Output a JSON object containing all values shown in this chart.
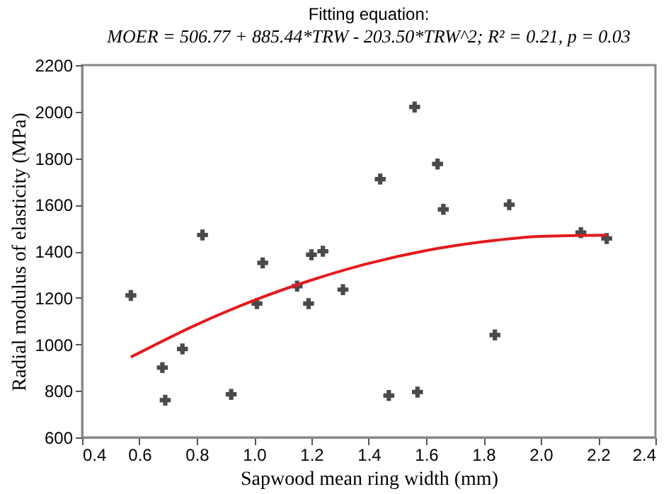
{
  "chart_data": {
    "type": "scatter",
    "title": "Fitting equation:",
    "subtitle": "MOER = 506.77 + 885.44*TRW - 203.50*TRW^2; R² = 0.21, p = 0.03",
    "xlabel": "Sapwood mean ring width (mm)",
    "ylabel": "Radial modulus of elasticity (MPa)",
    "xlim": [
      0.4,
      2.4
    ],
    "xticks": [
      {
        "value": 0.4,
        "label": "0.4"
      },
      {
        "value": 0.6,
        "label": "0.6"
      },
      {
        "value": 0.8,
        "label": "0.8"
      },
      {
        "value": 1.0,
        "label": "1.0"
      },
      {
        "value": 1.2,
        "label": "1.2"
      },
      {
        "value": 1.4,
        "label": "1.4"
      },
      {
        "value": 1.6,
        "label": "1.6"
      },
      {
        "value": 1.8,
        "label": "1.8"
      },
      {
        "value": 2.0,
        "label": "2.0"
      },
      {
        "value": 2.2,
        "label": "2.2"
      },
      {
        "value": 2.4,
        "label": "2.4"
      }
    ],
    "ylim": [
      600,
      2200
    ],
    "yticks": [
      600,
      800,
      1000,
      1200,
      1400,
      1600,
      1800,
      2000,
      2200
    ],
    "grid": false,
    "marker": "cross",
    "series": [
      {
        "color": "#4a4a4a",
        "x": [
          0.57,
          0.68,
          0.69,
          0.75,
          0.82,
          0.92,
          1.01,
          1.03,
          1.15,
          1.19,
          1.2,
          1.24,
          1.31,
          1.44,
          1.47,
          1.56,
          1.57,
          1.64,
          1.66,
          1.84,
          1.89,
          2.14,
          2.23
        ],
        "values": [
          1210,
          900,
          760,
          980,
          1470,
          785,
          1175,
          1350,
          1250,
          1175,
          1385,
          1400,
          1235,
          1710,
          780,
          2020,
          795,
          1775,
          1580,
          1040,
          1600,
          1480,
          1455
        ]
      },
      {
        "type": "line",
        "color": "#e41a1c",
        "marker": "none",
        "x": [
          0.57,
          0.8,
          1.0,
          1.2,
          1.4,
          1.6,
          1.8,
          2.0,
          2.23
        ],
        "values": [
          945,
          1085,
          1189,
          1276,
          1348,
          1403,
          1441,
          1464,
          1469
        ]
      }
    ]
  }
}
